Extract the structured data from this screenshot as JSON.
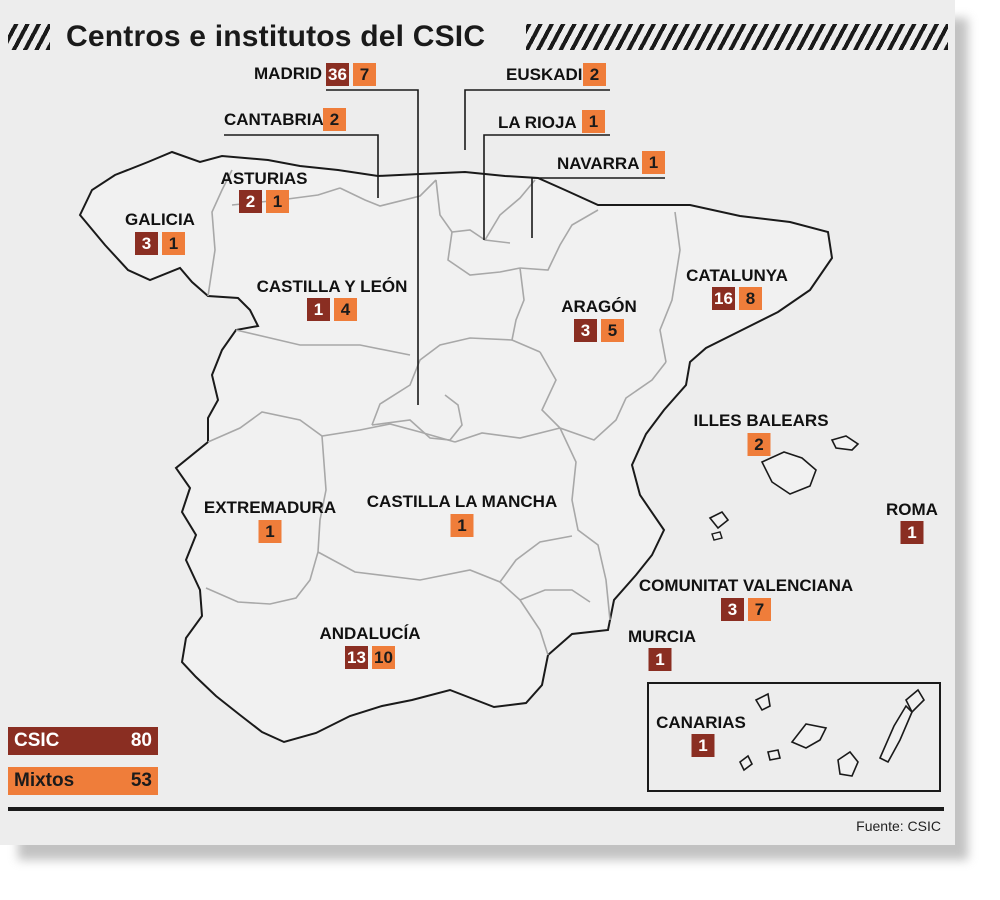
{
  "title": "Centros e institutos del CSIC",
  "colors": {
    "csic": "#8a2e22",
    "mixtos": "#ef7d3a"
  },
  "regions": {
    "madrid": {
      "name": "MADRID",
      "csic": "36",
      "mixtos": "7"
    },
    "euskadi": {
      "name": "EUSKADI",
      "mixtos": "2"
    },
    "cantabria": {
      "name": "CANTABRIA",
      "mixtos": "2"
    },
    "la_rioja": {
      "name": "LA RIOJA",
      "mixtos": "1"
    },
    "navarra": {
      "name": "NAVARRA",
      "mixtos": "1"
    },
    "asturias": {
      "name": "ASTURIAS",
      "csic": "2",
      "mixtos": "1"
    },
    "galicia": {
      "name": "GALICIA",
      "csic": "3",
      "mixtos": "1"
    },
    "castilla_leon": {
      "name": "CASTILLA Y LEÓN",
      "csic": "1",
      "mixtos": "4"
    },
    "aragon": {
      "name": "ARAGÓN",
      "csic": "3",
      "mixtos": "5"
    },
    "catalunya": {
      "name": "CATALUNYA",
      "csic": "16",
      "mixtos": "8"
    },
    "illes_balears": {
      "name": "ILLES BALEARS",
      "mixtos": "2"
    },
    "extremadura": {
      "name": "EXTREMADURA",
      "mixtos": "1"
    },
    "castilla_la_mancha": {
      "name": "CASTILLA LA MANCHA",
      "mixtos": "1"
    },
    "roma": {
      "name": "ROMA",
      "csic": "1"
    },
    "comunitat_valenciana": {
      "name": "COMUNITAT VALENCIANA",
      "csic": "3",
      "mixtos": "7"
    },
    "andalucia": {
      "name": "ANDALUCÍA",
      "csic": "13",
      "mixtos": "10"
    },
    "murcia": {
      "name": "MURCIA",
      "csic": "1"
    },
    "canarias": {
      "name": "CANARIAS",
      "csic": "1"
    }
  },
  "legend": {
    "csic": {
      "label": "CSIC",
      "value": "80"
    },
    "mixtos": {
      "label": "Mixtos",
      "value": "53"
    }
  },
  "source": "Fuente: CSIC"
}
